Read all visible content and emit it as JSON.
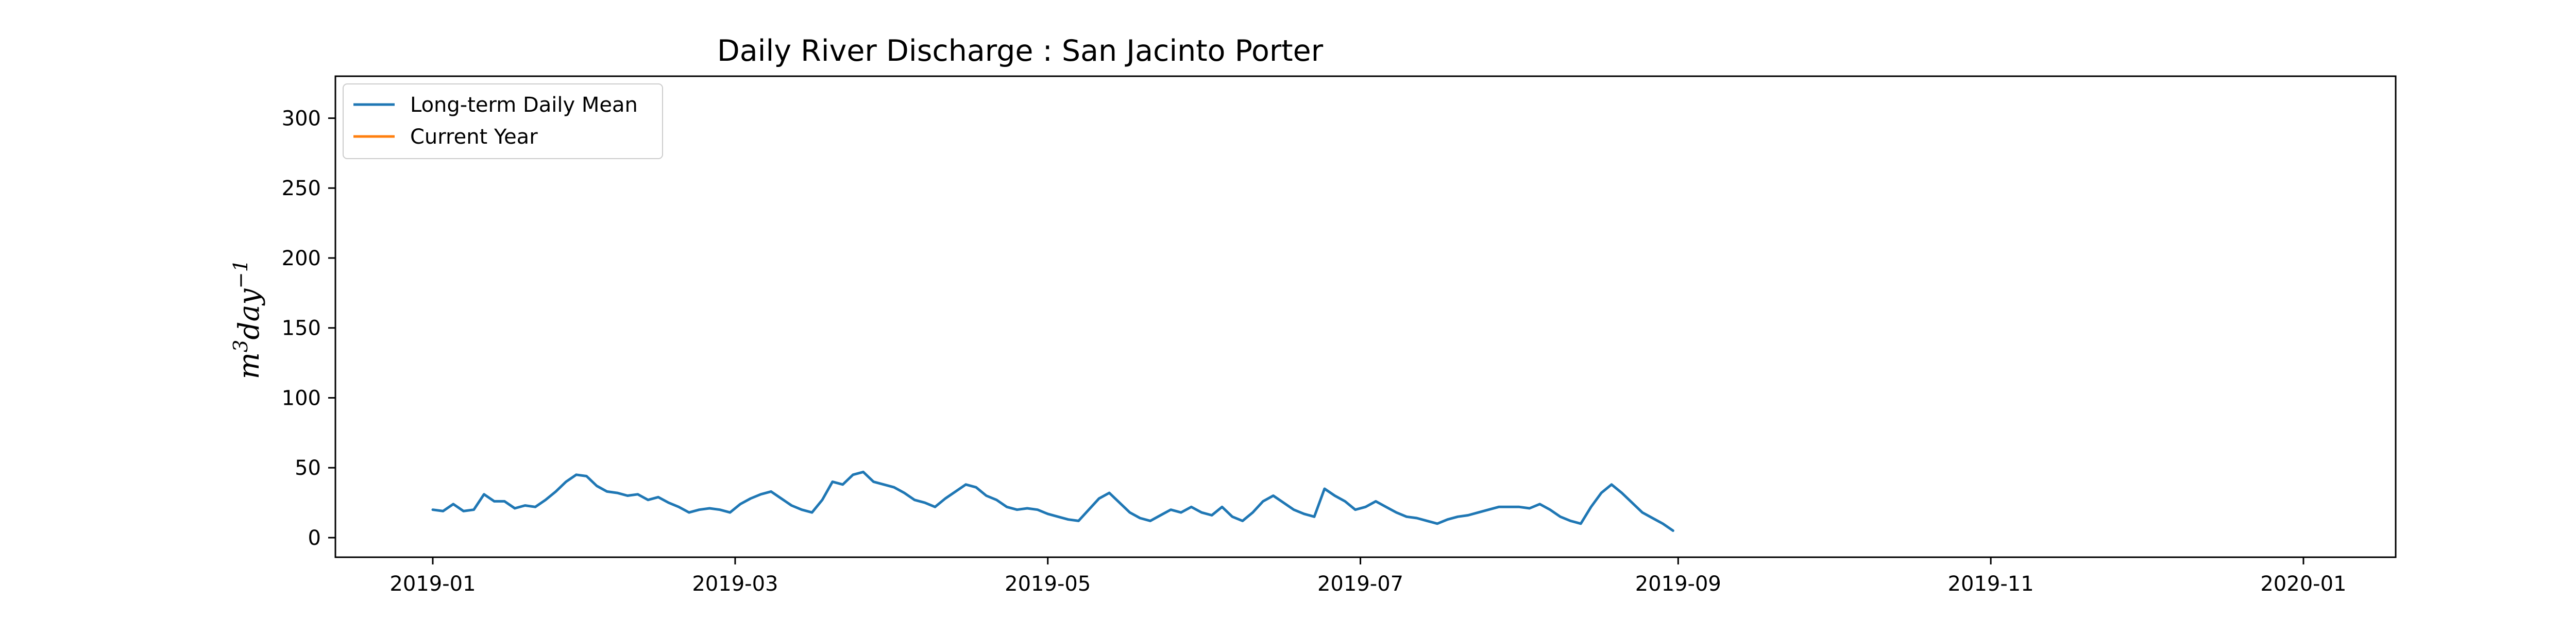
{
  "chart_data": {
    "type": "line",
    "title": "Daily River Discharge : San Jacinto Porter",
    "xlabel": "",
    "ylabel_html": "m<tspan baseline-shift=\"super\" font-size=\"70%\">3</tspan>day<tspan baseline-shift=\"super\" font-size=\"70%\">−1</tspan>",
    "ylabel": "m3day-1",
    "xlim": [
      "2018-12-13",
      "2020-01-19"
    ],
    "ylim": [
      -14,
      330
    ],
    "x_ticks": [
      {
        "date": "2019-01-01",
        "label": "2019-01"
      },
      {
        "date": "2019-03-01",
        "label": "2019-03"
      },
      {
        "date": "2019-05-01",
        "label": "2019-05"
      },
      {
        "date": "2019-07-01",
        "label": "2019-07"
      },
      {
        "date": "2019-09-01",
        "label": "2019-09"
      },
      {
        "date": "2019-11-01",
        "label": "2019-11"
      },
      {
        "date": "2020-01-01",
        "label": "2020-01"
      }
    ],
    "y_ticks": [
      0,
      50,
      100,
      150,
      200,
      250,
      300
    ],
    "legend": {
      "position": "top-left"
    },
    "series": [
      {
        "name": "Long-term Daily Mean",
        "color": "#1f77b4",
        "points": [
          [
            "2019-01-01",
            20
          ],
          [
            "2019-01-03",
            19
          ],
          [
            "2019-01-05",
            24
          ],
          [
            "2019-01-07",
            19
          ],
          [
            "2019-01-09",
            20
          ],
          [
            "2019-01-11",
            31
          ],
          [
            "2019-01-13",
            26
          ],
          [
            "2019-01-15",
            26
          ],
          [
            "2019-01-17",
            21
          ],
          [
            "2019-01-19",
            23
          ],
          [
            "2019-01-21",
            22
          ],
          [
            "2019-01-23",
            27
          ],
          [
            "2019-01-25",
            33
          ],
          [
            "2019-01-27",
            40
          ],
          [
            "2019-01-29",
            45
          ],
          [
            "2019-01-31",
            44
          ],
          [
            "2019-02-02",
            37
          ],
          [
            "2019-02-04",
            33
          ],
          [
            "2019-02-06",
            32
          ],
          [
            "2019-02-08",
            30
          ],
          [
            "2019-02-10",
            31
          ],
          [
            "2019-02-12",
            27
          ],
          [
            "2019-02-14",
            29
          ],
          [
            "2019-02-16",
            25
          ],
          [
            "2019-02-18",
            22
          ],
          [
            "2019-02-20",
            18
          ],
          [
            "2019-02-22",
            20
          ],
          [
            "2019-02-24",
            21
          ],
          [
            "2019-02-26",
            20
          ],
          [
            "2019-02-28",
            18
          ],
          [
            "2019-03-02",
            24
          ],
          [
            "2019-03-04",
            28
          ],
          [
            "2019-03-06",
            31
          ],
          [
            "2019-03-08",
            33
          ],
          [
            "2019-03-10",
            28
          ],
          [
            "2019-03-12",
            23
          ],
          [
            "2019-03-14",
            20
          ],
          [
            "2019-03-16",
            18
          ],
          [
            "2019-03-18",
            27
          ],
          [
            "2019-03-20",
            40
          ],
          [
            "2019-03-22",
            38
          ],
          [
            "2019-03-24",
            45
          ],
          [
            "2019-03-26",
            47
          ],
          [
            "2019-03-28",
            40
          ],
          [
            "2019-03-30",
            38
          ],
          [
            "2019-04-01",
            36
          ],
          [
            "2019-04-03",
            32
          ],
          [
            "2019-04-05",
            27
          ],
          [
            "2019-04-07",
            25
          ],
          [
            "2019-04-09",
            22
          ],
          [
            "2019-04-11",
            28
          ],
          [
            "2019-04-13",
            33
          ],
          [
            "2019-04-15",
            38
          ],
          [
            "2019-04-17",
            36
          ],
          [
            "2019-04-19",
            30
          ],
          [
            "2019-04-21",
            27
          ],
          [
            "2019-04-23",
            22
          ],
          [
            "2019-04-25",
            20
          ],
          [
            "2019-04-27",
            21
          ],
          [
            "2019-04-29",
            20
          ],
          [
            "2019-05-01",
            17
          ],
          [
            "2019-05-03",
            15
          ],
          [
            "2019-05-05",
            13
          ],
          [
            "2019-05-07",
            12
          ],
          [
            "2019-05-09",
            20
          ],
          [
            "2019-05-11",
            28
          ],
          [
            "2019-05-13",
            32
          ],
          [
            "2019-05-15",
            25
          ],
          [
            "2019-05-17",
            18
          ],
          [
            "2019-05-19",
            14
          ],
          [
            "2019-05-21",
            12
          ],
          [
            "2019-05-23",
            16
          ],
          [
            "2019-05-25",
            20
          ],
          [
            "2019-05-27",
            18
          ],
          [
            "2019-05-29",
            22
          ],
          [
            "2019-05-31",
            18
          ],
          [
            "2019-06-02",
            16
          ],
          [
            "2019-06-04",
            22
          ],
          [
            "2019-06-06",
            15
          ],
          [
            "2019-06-08",
            12
          ],
          [
            "2019-06-10",
            18
          ],
          [
            "2019-06-12",
            26
          ],
          [
            "2019-06-14",
            30
          ],
          [
            "2019-06-16",
            25
          ],
          [
            "2019-06-18",
            20
          ],
          [
            "2019-06-20",
            17
          ],
          [
            "2019-06-22",
            15
          ],
          [
            "2019-06-24",
            35
          ],
          [
            "2019-06-26",
            30
          ],
          [
            "2019-06-28",
            26
          ],
          [
            "2019-06-30",
            20
          ],
          [
            "2019-07-02",
            22
          ],
          [
            "2019-07-04",
            26
          ],
          [
            "2019-07-06",
            22
          ],
          [
            "2019-07-08",
            18
          ],
          [
            "2019-07-10",
            15
          ],
          [
            "2019-07-12",
            14
          ],
          [
            "2019-07-14",
            12
          ],
          [
            "2019-07-16",
            10
          ],
          [
            "2019-07-18",
            13
          ],
          [
            "2019-07-20",
            15
          ],
          [
            "2019-07-22",
            16
          ],
          [
            "2019-07-24",
            18
          ],
          [
            "2019-07-26",
            20
          ],
          [
            "2019-07-28",
            22
          ],
          [
            "2019-07-30",
            22
          ],
          [
            "2019-08-01",
            22
          ],
          [
            "2019-08-03",
            21
          ],
          [
            "2019-08-05",
            24
          ],
          [
            "2019-08-07",
            20
          ],
          [
            "2019-08-09",
            15
          ],
          [
            "2019-08-11",
            12
          ],
          [
            "2019-08-13",
            10
          ],
          [
            "2019-08-15",
            22
          ],
          [
            "2019-08-17",
            32
          ],
          [
            "2019-08-19",
            38
          ],
          [
            "2019-08-21",
            32
          ],
          [
            "2019-08-23",
            25
          ],
          [
            "2019-08-25",
            18
          ],
          [
            "2019-08-27",
            14
          ],
          [
            "2019-08-29",
            10
          ],
          [
            "2019-08-31",
            5
          ]
        ]
      },
      {
        "name": "Current Year",
        "color": "#ff7f0e",
        "points": []
      }
    ]
  }
}
